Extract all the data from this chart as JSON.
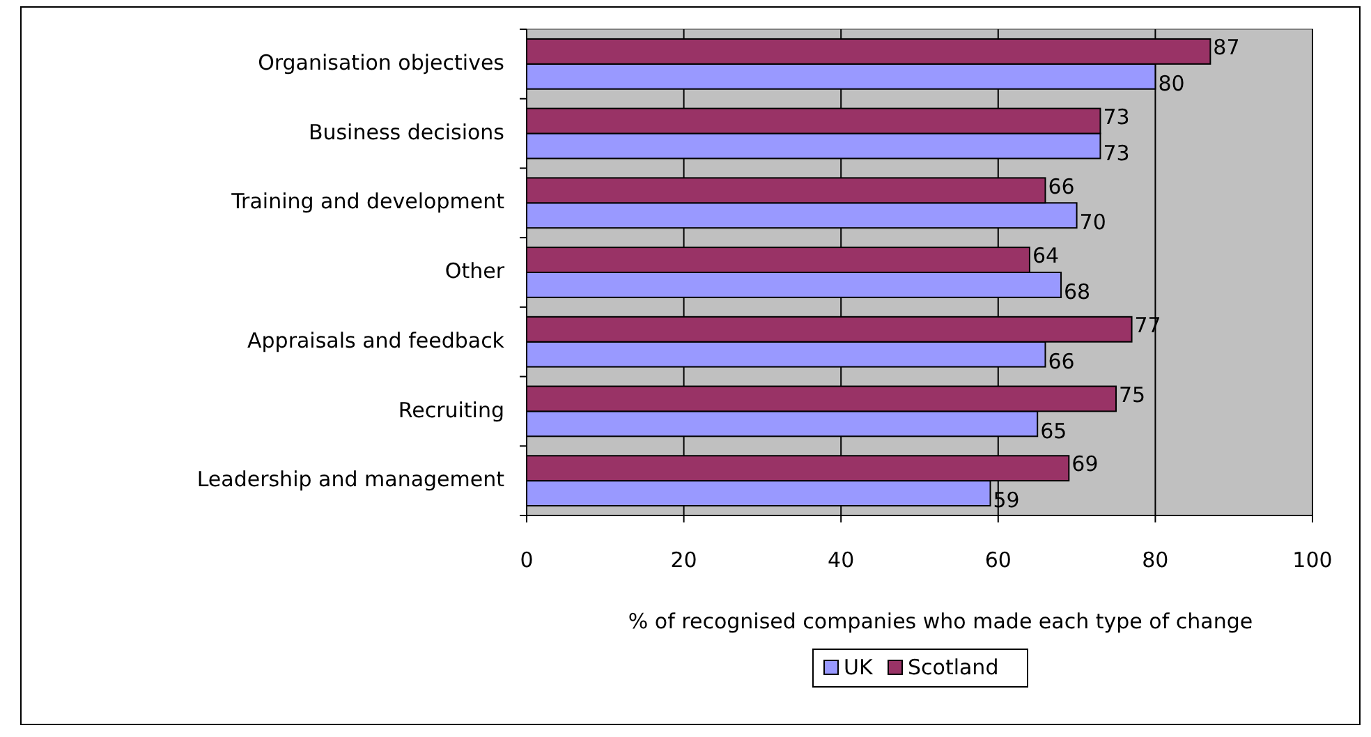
{
  "chart_data": {
    "type": "bar",
    "orientation": "horizontal",
    "xlabel": "% of recognised companies who made each type of change",
    "categories": [
      "Organisation objectives",
      "Business decisions",
      "Training and development",
      "Other",
      "Appraisals and feedback",
      "Recruiting",
      "Leadership and management"
    ],
    "series": [
      {
        "name": "UK",
        "color": "#9999ff",
        "values": [
          80,
          73,
          70,
          68,
          66,
          65,
          59
        ]
      },
      {
        "name": "Scotland",
        "color": "#993366",
        "values": [
          87,
          73,
          66,
          64,
          77,
          75,
          69
        ]
      }
    ],
    "xlim": [
      0,
      100
    ],
    "xticks": [
      0,
      20,
      40,
      60,
      80,
      100
    ],
    "grid": "x",
    "legend": "bottom",
    "data_labels": true
  }
}
